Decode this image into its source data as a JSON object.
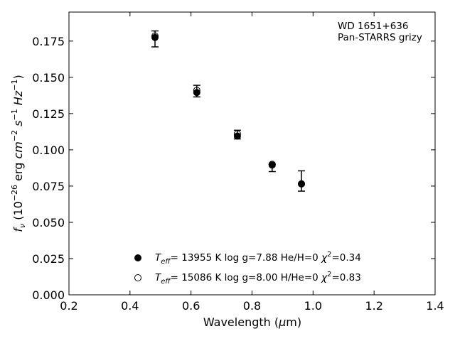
{
  "chart_data": {
    "type": "scatter",
    "annotation": [
      "WD 1651+636",
      "Pan-STARRS grizy"
    ],
    "xlabel_parts": [
      "Wavelength (",
      "μ",
      "m)"
    ],
    "ylabel": "f_ν (10^-26 erg cm^-2 s^-1 Hz^-1)",
    "xlim": [
      0.2,
      1.4
    ],
    "ylim": [
      0.0,
      0.195
    ],
    "xticks": [
      0.2,
      0.4,
      0.6,
      0.8,
      1.0,
      1.2,
      1.4
    ],
    "xtick_labels": [
      "0.2",
      "0.4",
      "0.6",
      "0.8",
      "1.0",
      "1.2",
      "1.4"
    ],
    "yticks": [
      0.0,
      0.025,
      0.05,
      0.075,
      0.1,
      0.125,
      0.15,
      0.175
    ],
    "ytick_labels": [
      "0.000",
      "0.025",
      "0.050",
      "0.075",
      "0.100",
      "0.125",
      "0.150",
      "0.175"
    ],
    "grid": false,
    "legend_position": "bottom-center",
    "observed": {
      "x": [
        0.482,
        0.619,
        0.752,
        0.866,
        0.962
      ],
      "y": [
        0.1765,
        0.1405,
        0.1105,
        0.0875,
        0.0785
      ],
      "yerr": [
        0.0055,
        0.004,
        0.003,
        0.0025,
        0.007
      ]
    },
    "series": [
      {
        "label_parts": {
          "t": "T",
          "eff": "eff",
          "main": "= 13955 K  log g=7.88  He/H=0  ",
          "chi": "χ",
          "two": "2",
          "tail": "=0.34"
        },
        "marker": "filled",
        "x": [
          0.482,
          0.619,
          0.752,
          0.866,
          0.962
        ],
        "y": [
          0.1775,
          0.1395,
          0.1095,
          0.0895,
          0.0765
        ]
      },
      {
        "label_parts": {
          "t": "T",
          "eff": "eff",
          "main": "= 15086 K  log g=8.00  H/He=0  ",
          "chi": "χ",
          "two": "2",
          "tail": "=0.83"
        },
        "marker": "open",
        "x": [
          0.482,
          0.619,
          0.752,
          0.866,
          0.962
        ],
        "y": [
          0.1785,
          0.141,
          0.111,
          0.09,
          0.0765
        ]
      }
    ]
  }
}
